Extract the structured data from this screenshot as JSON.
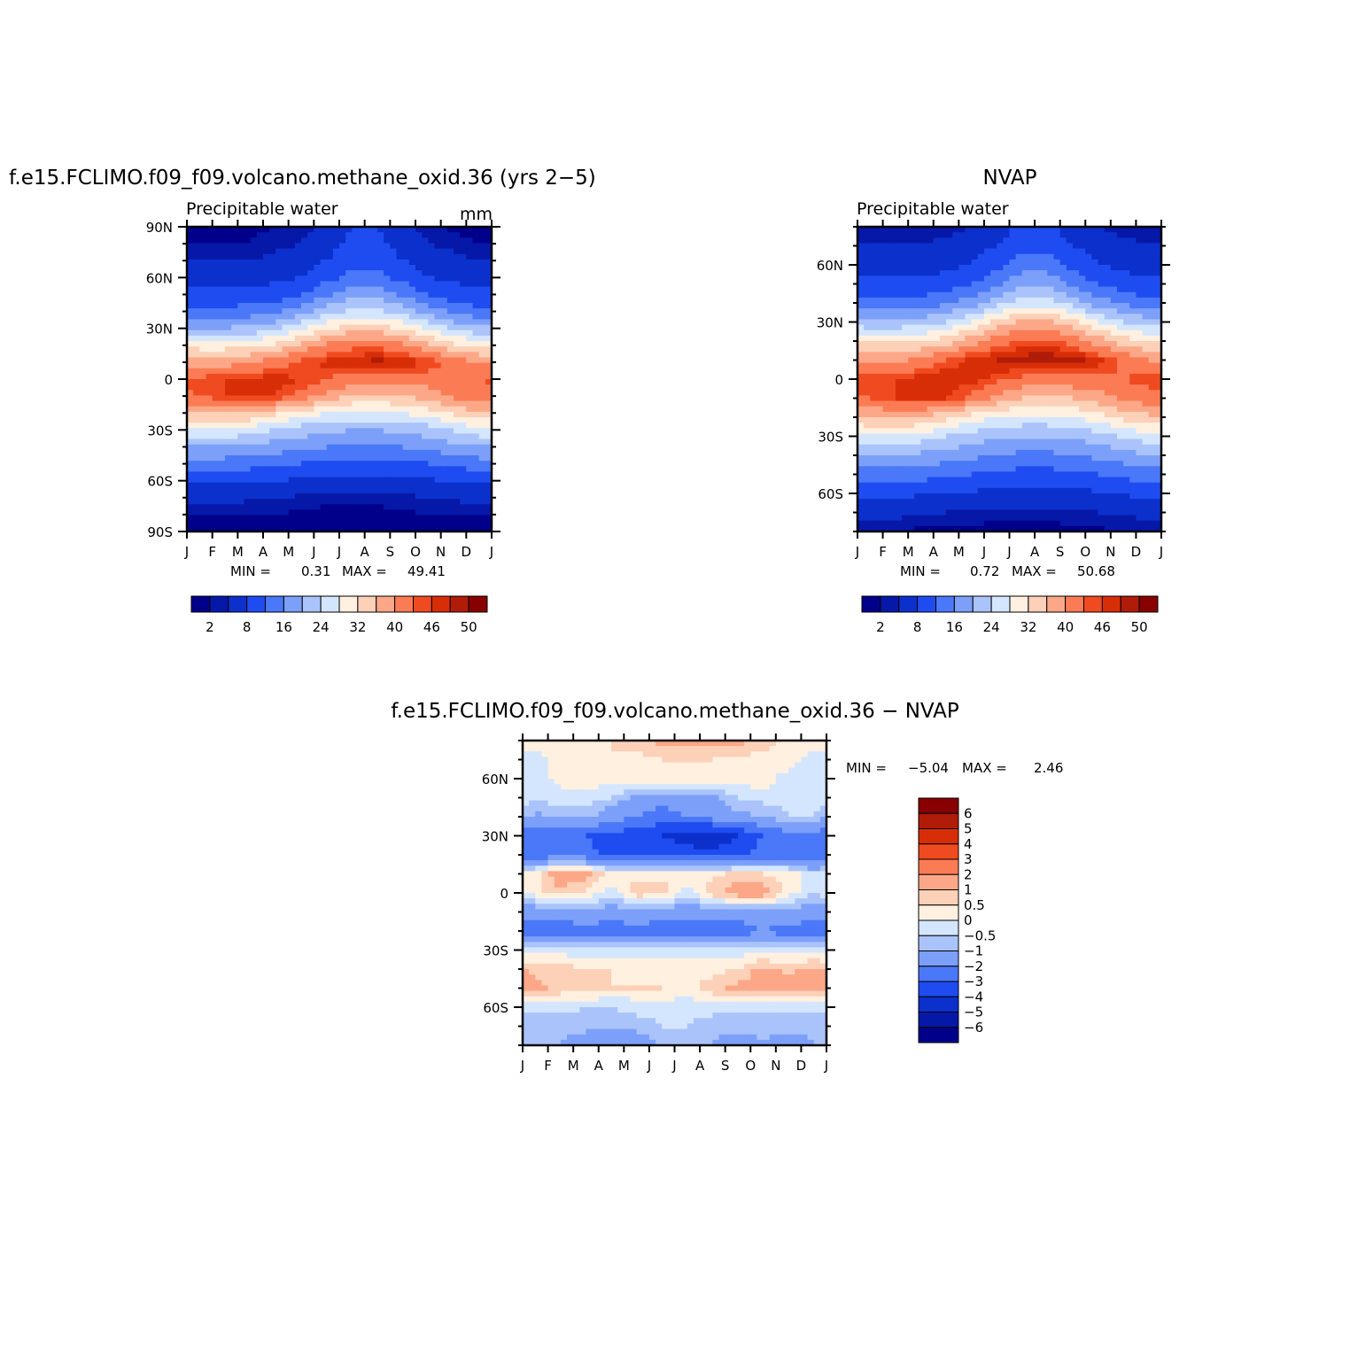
{
  "panels": [
    {
      "id": "model",
      "title": "f.e15.FCLIMO.f09_f09.volcano.methane_oxid.36 (yrs 2−5)",
      "left_label": "Precipitable water",
      "right_label": "mm",
      "stats": {
        "min_label": "MIN =",
        "min": "0.31",
        "max_label": "MAX =",
        "max": "49.41"
      }
    },
    {
      "id": "obs",
      "title": "NVAP",
      "left_label": "Precipitable water",
      "right_label": "",
      "stats": {
        "min_label": "MIN =",
        "min": "0.72",
        "max_label": "MAX =",
        "max": "50.68"
      }
    },
    {
      "id": "diff",
      "title": "f.e15.FCLIMO.f09_f09.volcano.methane_oxid.36 − NVAP",
      "left_label": "",
      "right_label": "",
      "stats": {
        "min_label": "MIN =",
        "min": "−5.04",
        "max_label": "MAX =",
        "max": "2.46"
      }
    }
  ],
  "chart_data": [
    {
      "type": "heatmap",
      "panel": "model",
      "title": "f.e15.FCLIMO.f09_f09.volcano.methane_oxid.36 (yrs 2−5)",
      "subtitle_left": "Precipitable water",
      "units": "mm",
      "x_tick_labels": [
        "J",
        "F",
        "M",
        "A",
        "M",
        "J",
        "J",
        "A",
        "S",
        "O",
        "N",
        "D",
        "J"
      ],
      "y_tick_labels": [
        "90N",
        "60N",
        "30N",
        "0",
        "30S",
        "60S",
        "90S"
      ],
      "y_range": [
        -90,
        90
      ],
      "months": [
        "Jan",
        "Feb",
        "Mar",
        "Apr",
        "May",
        "Jun",
        "Jul",
        "Aug",
        "Sep",
        "Oct",
        "Nov",
        "Dec"
      ],
      "latitudes": [
        -90,
        -80,
        -70,
        -60,
        -50,
        -40,
        -30,
        -20,
        -10,
        0,
        10,
        20,
        30,
        40,
        50,
        60,
        70,
        80,
        90
      ],
      "values": [
        [
          1,
          1,
          1,
          1,
          1,
          0.5,
          0.5,
          0.5,
          1,
          1,
          1,
          1
        ],
        [
          2,
          2,
          2,
          2,
          1.5,
          1,
          1,
          1,
          1.5,
          2,
          2,
          2
        ],
        [
          5,
          5,
          4.5,
          4,
          3.5,
          3,
          3,
          3,
          3.5,
          4,
          4.5,
          5
        ],
        [
          9,
          9,
          8.5,
          8,
          7.5,
          7,
          6.5,
          6.5,
          7,
          7.5,
          8.5,
          9
        ],
        [
          14,
          14,
          13.5,
          13,
          12,
          11,
          10.5,
          10.5,
          11,
          12,
          13,
          14
        ],
        [
          20,
          20,
          19,
          18,
          17,
          16,
          15,
          15,
          16,
          17,
          18.5,
          20
        ],
        [
          27,
          27,
          26,
          24,
          22,
          21,
          20,
          20,
          21,
          22,
          24.5,
          26.5
        ],
        [
          36,
          37,
          36,
          33,
          30,
          28,
          27,
          27,
          28,
          30,
          33,
          35
        ],
        [
          44,
          46,
          47,
          46,
          43,
          39,
          36,
          35,
          36,
          38,
          41,
          43
        ],
        [
          45,
          46,
          47,
          47,
          46,
          44,
          42,
          42,
          42,
          42,
          43,
          44
        ],
        [
          38,
          38,
          40,
          42,
          45,
          47,
          48,
          49,
          48,
          46,
          42,
          40
        ],
        [
          30,
          30,
          31,
          33,
          37,
          41,
          43,
          43,
          41,
          37,
          33,
          31
        ],
        [
          20,
          20,
          21,
          23,
          27,
          31,
          34,
          34,
          31,
          27,
          23,
          21
        ],
        [
          13,
          13,
          14,
          15,
          18,
          22,
          25,
          25,
          22,
          18,
          15,
          13
        ],
        [
          9,
          9,
          9,
          10,
          12,
          15,
          18,
          18,
          15,
          12,
          10,
          9
        ],
        [
          6,
          6,
          6,
          7,
          8,
          11,
          13,
          13,
          11,
          8,
          7,
          6
        ],
        [
          4,
          4,
          4,
          5,
          6,
          8,
          11,
          11,
          8,
          6,
          5,
          4
        ],
        [
          2,
          2,
          2,
          3,
          4,
          6,
          9,
          9,
          6,
          4,
          3,
          2
        ],
        [
          1,
          1,
          1.5,
          2,
          3,
          5,
          8,
          8,
          5,
          3,
          1.5,
          1
        ]
      ],
      "min": 0.31,
      "max": 49.41
    },
    {
      "type": "heatmap",
      "panel": "obs",
      "title": "NVAP",
      "subtitle_left": "Precipitable water",
      "x_tick_labels": [
        "J",
        "F",
        "M",
        "A",
        "M",
        "J",
        "J",
        "A",
        "S",
        "O",
        "N",
        "D",
        "J"
      ],
      "y_tick_labels": [
        "60N",
        "30N",
        "0",
        "30S",
        "60S"
      ],
      "y_range": [
        -80,
        80
      ],
      "months": [
        "Jan",
        "Feb",
        "Mar",
        "Apr",
        "May",
        "Jun",
        "Jul",
        "Aug",
        "Sep",
        "Oct",
        "Nov",
        "Dec"
      ],
      "latitudes": [
        -80,
        -70,
        -60,
        -50,
        -40,
        -30,
        -20,
        -10,
        0,
        10,
        20,
        30,
        40,
        50,
        60,
        70,
        80
      ],
      "values": [
        [
          2,
          2,
          1.5,
          1.5,
          1.2,
          1,
          1,
          1,
          1.2,
          1.5,
          2,
          2
        ],
        [
          5,
          5,
          4.5,
          4,
          3.5,
          3,
          3,
          3,
          3.5,
          4,
          4.5,
          5
        ],
        [
          9,
          9,
          8.5,
          8,
          7.5,
          7,
          6.5,
          6.5,
          7,
          7.5,
          8.5,
          9
        ],
        [
          14,
          14,
          13.5,
          13,
          12,
          11,
          10.5,
          10.5,
          11,
          12,
          13,
          14
        ],
        [
          20,
          20,
          19,
          18,
          17,
          16,
          15,
          15,
          16,
          17,
          18.5,
          20
        ],
        [
          27,
          27,
          26,
          24,
          22,
          21,
          20,
          20,
          21,
          22,
          24.5,
          26.5
        ],
        [
          36,
          37,
          36,
          33,
          30,
          28,
          27,
          27,
          28,
          30,
          33,
          35
        ],
        [
          44,
          46,
          47,
          46,
          43,
          39,
          36,
          35,
          36,
          38,
          41,
          43
        ],
        [
          45,
          46,
          47,
          48,
          47,
          45,
          43,
          43,
          43,
          43,
          44,
          45
        ],
        [
          38,
          39,
          41,
          44,
          47,
          48,
          49,
          50,
          49,
          47,
          43,
          40
        ],
        [
          31,
          31,
          32,
          34,
          38,
          42,
          45,
          45,
          42,
          38,
          34,
          32
        ],
        [
          21,
          21,
          22,
          24,
          28,
          33,
          37,
          37,
          33,
          28,
          24,
          22
        ],
        [
          13,
          13,
          14,
          15,
          18,
          22,
          26,
          26,
          22,
          18,
          15,
          13
        ],
        [
          9,
          9,
          9,
          10,
          12,
          15,
          19,
          19,
          15,
          12,
          10,
          9
        ],
        [
          6,
          6,
          6,
          7,
          8,
          11,
          14,
          14,
          11,
          8,
          7,
          6
        ],
        [
          4,
          4,
          4,
          5,
          6,
          8,
          11,
          11,
          8,
          6,
          5,
          4
        ],
        [
          2,
          2,
          2,
          3,
          4,
          6,
          9,
          9,
          6,
          4,
          3,
          2
        ]
      ],
      "min": 0.72,
      "max": 50.68
    },
    {
      "type": "heatmap",
      "panel": "diff",
      "title": "f.e15.FCLIMO.f09_f09.volcano.methane_oxid.36 − NVAP",
      "x_tick_labels": [
        "J",
        "F",
        "M",
        "A",
        "M",
        "J",
        "J",
        "A",
        "S",
        "O",
        "N",
        "D",
        "J"
      ],
      "y_tick_labels": [
        "60N",
        "30N",
        "0",
        "30S",
        "60S"
      ],
      "y_range": [
        -80,
        80
      ],
      "months": [
        "Jan",
        "Feb",
        "Mar",
        "Apr",
        "May",
        "Jun",
        "Jul",
        "Aug",
        "Sep",
        "Oct",
        "Nov",
        "Dec"
      ],
      "latitudes": [
        -80,
        -70,
        -60,
        -50,
        -40,
        -30,
        -20,
        -10,
        0,
        10,
        20,
        30,
        40,
        50,
        60,
        70,
        80
      ],
      "values": [
        [
          -1,
          -1,
          -1.5,
          -1.5,
          -1.5,
          -1,
          -1,
          -1,
          -1.5,
          -1,
          -1.5,
          -1
        ],
        [
          -1,
          -0.8,
          -0.8,
          -0.8,
          -0.8,
          -0.5,
          -0.5,
          -0.8,
          -0.8,
          -0.8,
          -0.8,
          -0.8
        ],
        [
          -0.3,
          -0.3,
          -0.5,
          -0.5,
          -0.3,
          -0.3,
          -0.3,
          -0.3,
          -0.3,
          -0.3,
          -0.3,
          -0.3
        ],
        [
          1.2,
          0.8,
          0.8,
          0.5,
          0.5,
          0.5,
          0.3,
          0.8,
          1.2,
          1.5,
          1.5,
          1.5
        ],
        [
          0.8,
          0.8,
          0.5,
          0.5,
          0.3,
          0.3,
          0.3,
          0.3,
          0.5,
          1.2,
          0.8,
          1.2
        ],
        [
          -0.3,
          -0.3,
          -0.3,
          -0.3,
          -0.3,
          -0.3,
          -0.3,
          -0.3,
          -0.3,
          -0.3,
          -0.3,
          -0.3
        ],
        [
          -2.5,
          -2.5,
          -2.5,
          -2.5,
          -2.5,
          -2.5,
          -2.5,
          -2.5,
          -2.5,
          -2,
          -2.5,
          -2.5
        ],
        [
          -1.5,
          -1.5,
          -1.2,
          -1.5,
          -1.2,
          -1.5,
          -1.5,
          -1.5,
          -1.5,
          -1.5,
          -1.2,
          -1.5
        ],
        [
          0.3,
          0.8,
          0.5,
          -0.3,
          0.8,
          0.8,
          -0.3,
          0.8,
          1.5,
          1.5,
          0.3,
          -0.5
        ],
        [
          0.3,
          1.5,
          1.2,
          0.3,
          0.3,
          0.3,
          0.3,
          0.3,
          0.8,
          0.5,
          0.3,
          -0.5
        ],
        [
          -2.5,
          -2.5,
          -2.5,
          -3.5,
          -3.5,
          -3.5,
          -3.5,
          -3.5,
          -3.5,
          -2.5,
          -2.5,
          -2.5
        ],
        [
          -2.5,
          -3,
          -3,
          -3.5,
          -3.5,
          -4,
          -4.5,
          -5,
          -4,
          -3,
          -2.5,
          -2.5
        ],
        [
          -1.2,
          -0.8,
          -0.8,
          -1.5,
          -2,
          -2.5,
          -2,
          -1.5,
          -1.2,
          -1,
          -0.5,
          -0.5
        ],
        [
          -0.3,
          -0.3,
          -0.3,
          -0.5,
          -1.2,
          -1.5,
          -1.5,
          -1.2,
          -0.5,
          -0.3,
          -0.3,
          -0.3
        ],
        [
          -0.5,
          0.3,
          0.3,
          0.3,
          0.3,
          0.3,
          0.3,
          0.3,
          0.3,
          0.3,
          -0.3,
          -0.5
        ],
        [
          -0.3,
          0.3,
          0.3,
          0.5,
          0.3,
          0.5,
          0.5,
          0.5,
          0.3,
          0.3,
          0.3,
          -0.3
        ],
        [
          0.3,
          0.3,
          0.3,
          0.5,
          0.8,
          1.2,
          1.2,
          1.2,
          1.2,
          0.8,
          0.3,
          0.3
        ]
      ],
      "min": -5.04,
      "max": 2.46
    }
  ],
  "colorbars": {
    "main": {
      "levels": [
        2,
        4,
        8,
        12,
        16,
        20,
        24,
        28,
        32,
        36,
        40,
        44,
        46,
        48,
        50
      ],
      "labels": [
        "2",
        "8",
        "16",
        "24",
        "32",
        "40",
        "46",
        "50"
      ],
      "colors": [
        "#00008a",
        "#0618a8",
        "#0c30cc",
        "#1e4cf0",
        "#4a78f8",
        "#7ca0fa",
        "#aac4fb",
        "#d4e6fd",
        "#fff0e0",
        "#fdd0b8",
        "#fca888",
        "#fb7c54",
        "#f04a20",
        "#d82e08",
        "#b01c08",
        "#880000"
      ]
    },
    "diff": {
      "levels": [
        -6,
        -5,
        -4,
        -3,
        -2,
        -1,
        -0.5,
        0,
        0.5,
        1,
        2,
        3,
        4,
        5,
        6
      ],
      "labels": [
        "6",
        "5",
        "4",
        "3",
        "2",
        "1",
        "0.5",
        "0",
        "−0.5",
        "−1",
        "−2",
        "−3",
        "−4",
        "−5",
        "−6"
      ],
      "colors": [
        "#00008a",
        "#0618a8",
        "#0c30cc",
        "#1e4cf0",
        "#4a78f8",
        "#7ca0fa",
        "#aac4fb",
        "#d4e6fd",
        "#fff0e0",
        "#fdd0b8",
        "#fca888",
        "#fb7c54",
        "#f04a20",
        "#d82e08",
        "#b01c08",
        "#880000"
      ]
    }
  }
}
